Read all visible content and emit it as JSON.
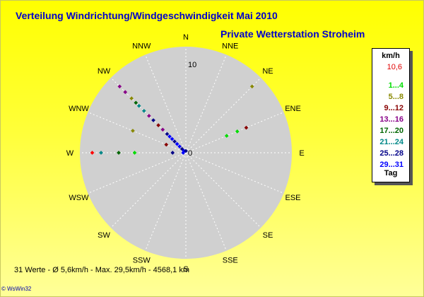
{
  "title": "Verteilung Windrichtung/Windgeschwindigkeit  Mai 2010",
  "subtitle": "Private Wetterstation Stroheim",
  "footer": "31 Werte   -   Ø 5,6km/h  -  Max. 29,5km/h  -  4568,1 km",
  "credit": "© WsWin32",
  "legend": {
    "title": "km/h",
    "max": "10,6",
    "items": [
      {
        "label": "1...4",
        "color": "#00dd00"
      },
      {
        "label": "5...8",
        "color": "#888800"
      },
      {
        "label": "9...12",
        "color": "#880000"
      },
      {
        "label": "13...16",
        "color": "#880088"
      },
      {
        "label": "17...20",
        "color": "#006600"
      },
      {
        "label": "21...24",
        "color": "#008888"
      },
      {
        "label": "25...28",
        "color": "#000088"
      },
      {
        "label": "29...31",
        "color": "#0000ff"
      }
    ],
    "tag": "Tag"
  },
  "chart_data": {
    "type": "polar-scatter",
    "directions": [
      "N",
      "NNE",
      "NE",
      "ENE",
      "E",
      "ESE",
      "SE",
      "SSE",
      "S",
      "SSW",
      "SW",
      "WSW",
      "W",
      "WNW",
      "NW",
      "NNW"
    ],
    "rmax": 12,
    "ticks": [
      {
        "label": "10",
        "r": 10
      },
      {
        "label": "0",
        "r": 0
      }
    ],
    "points": [
      {
        "dir": "NE",
        "r": 10.6,
        "color": "#888800"
      },
      {
        "dir": "ENE",
        "r": 5.0,
        "color": "#00dd00"
      },
      {
        "dir": "ENE",
        "r": 7.4,
        "color": "#880000"
      },
      {
        "dir": "ENE",
        "r": 6.3,
        "color": "#00dd00"
      },
      {
        "dir": "W",
        "r": 10.6,
        "color": "#ff0000"
      },
      {
        "dir": "W",
        "r": 9.6,
        "color": "#008888"
      },
      {
        "dir": "W",
        "r": 7.6,
        "color": "#006600"
      },
      {
        "dir": "W",
        "r": 5.8,
        "color": "#00dd00"
      },
      {
        "dir": "W",
        "r": 1.5,
        "color": "#000088"
      },
      {
        "dir": "WNW",
        "r": 6.5,
        "color": "#888800"
      },
      {
        "dir": "WNW",
        "r": 2.4,
        "color": "#880000"
      },
      {
        "dir": "NW",
        "r": 10.6,
        "color": "#880088"
      },
      {
        "dir": "NW",
        "r": 9.7,
        "color": "#880088"
      },
      {
        "dir": "NW",
        "r": 8.7,
        "color": "#888800"
      },
      {
        "dir": "NW",
        "r": 8.0,
        "color": "#006600"
      },
      {
        "dir": "NW",
        "r": 7.5,
        "color": "#008888"
      },
      {
        "dir": "NW",
        "r": 6.7,
        "color": "#008888"
      },
      {
        "dir": "NW",
        "r": 5.9,
        "color": "#880088"
      },
      {
        "dir": "NW",
        "r": 5.2,
        "color": "#000088"
      },
      {
        "dir": "NW",
        "r": 4.4,
        "color": "#880000"
      },
      {
        "dir": "NW",
        "r": 3.7,
        "color": "#880088"
      },
      {
        "dir": "NW",
        "r": 3.0,
        "color": "#000088"
      },
      {
        "dir": "NW",
        "r": 2.6,
        "color": "#0000ff"
      },
      {
        "dir": "NW",
        "r": 2.2,
        "color": "#0000ff"
      },
      {
        "dir": "NW",
        "r": 1.8,
        "color": "#000088"
      },
      {
        "dir": "NW",
        "r": 1.4,
        "color": "#0000ff"
      },
      {
        "dir": "NW",
        "r": 1.0,
        "color": "#0000ff"
      },
      {
        "dir": "NW",
        "r": 0.6,
        "color": "#000088"
      },
      {
        "dir": "NW",
        "r": 0.3,
        "color": "#0000ff"
      },
      {
        "dir": "N",
        "r": 0.2,
        "color": "#000088"
      },
      {
        "dir": "W",
        "r": 0.3,
        "color": "#0000ff"
      }
    ]
  }
}
